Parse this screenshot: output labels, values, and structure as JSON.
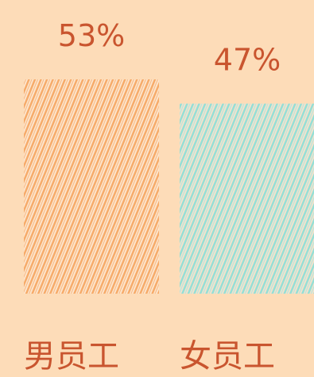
{
  "chart_data": {
    "type": "bar",
    "categories": [
      "男员工",
      "女员工"
    ],
    "values": [
      53,
      47
    ],
    "value_labels": [
      "53%",
      "47%"
    ],
    "colors": {
      "male": "#f6a866",
      "female": "#8fdfd8",
      "label_text": "#c9552f",
      "background": "#fddcb8"
    }
  }
}
